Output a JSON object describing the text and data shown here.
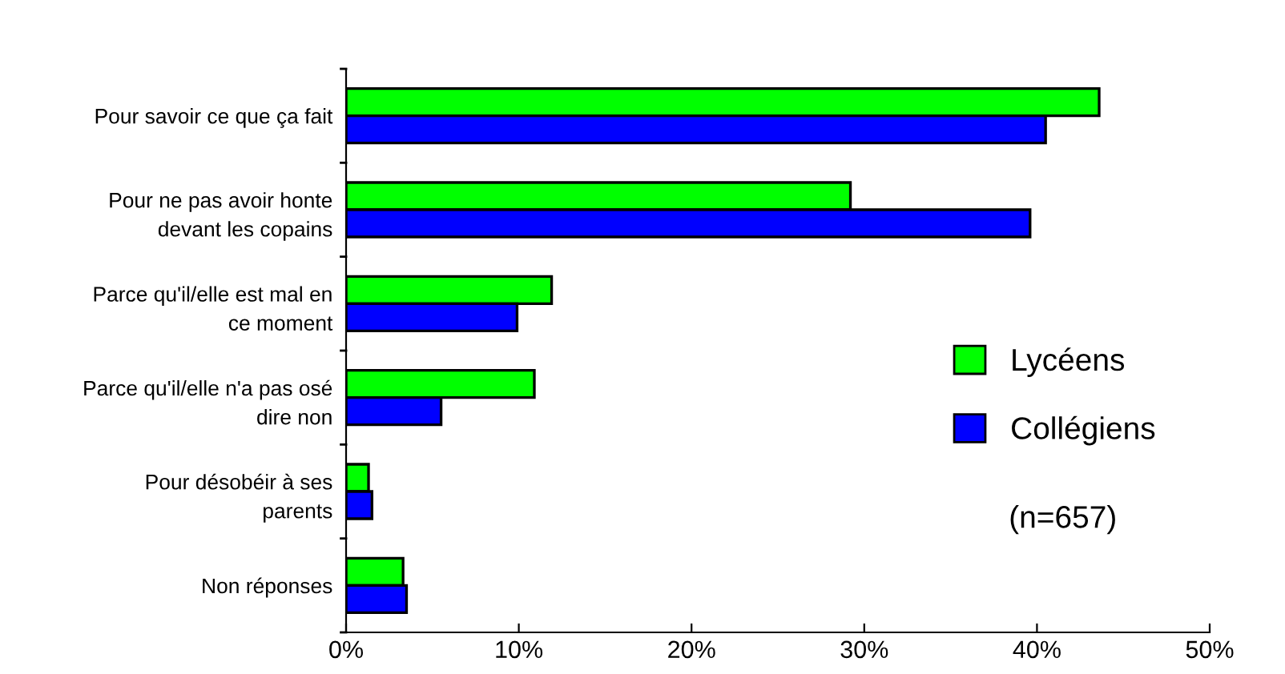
{
  "chart_data": {
    "type": "bar",
    "orientation": "horizontal",
    "categories": [
      "Pour savoir ce que ça fait",
      "Pour ne pas avoir honte\ndevant les copains",
      "Parce qu'il/elle est mal en\nce moment",
      "Parce qu'il/elle n'a pas osé\ndire non",
      "Pour désobéir à ses\nparents",
      "Non réponses"
    ],
    "series": [
      {
        "name": "Lycéens",
        "color": "#00ff00",
        "values": [
          43.6,
          29.2,
          11.9,
          10.9,
          1.3,
          3.3
        ]
      },
      {
        "name": "Collégiens",
        "color": "#0000ff",
        "values": [
          40.5,
          39.6,
          9.9,
          5.5,
          1.5,
          3.5
        ]
      }
    ],
    "xlim": [
      0,
      50
    ],
    "xticks": [
      {
        "value": 0,
        "label": "0%"
      },
      {
        "value": 10,
        "label": "10%"
      },
      {
        "value": 20,
        "label": "20%"
      },
      {
        "value": 30,
        "label": "30%"
      },
      {
        "value": 40,
        "label": "40%"
      },
      {
        "value": 50,
        "label": "50%"
      }
    ],
    "legend": "right",
    "grid": false,
    "annotations": [
      "(n=657)"
    ]
  }
}
